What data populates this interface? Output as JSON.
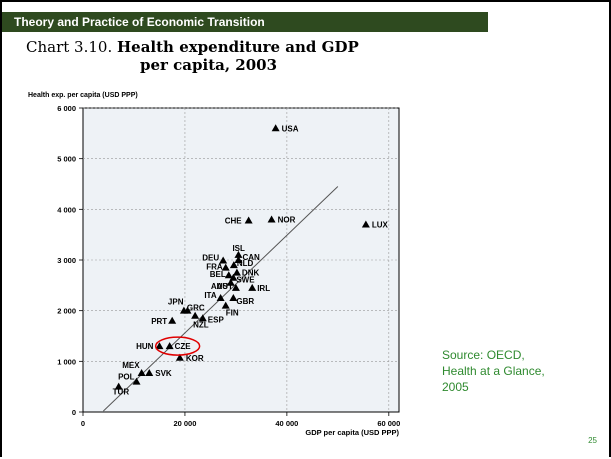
{
  "header": {
    "title": "Theory and Practice of Economic Transition"
  },
  "chart_title": {
    "line1_num": "Chart 3.10.",
    "line1_rest": "Health expenditure and GDP",
    "line2": "per capita, 2003"
  },
  "source": {
    "text": "Source: OECD, Health at a Glance, 2005"
  },
  "page_number": "25",
  "colors": {
    "header_bg": "#2e4a1f",
    "source_text": "#2f8a2f",
    "highlight_ellipse": "#e00000",
    "point": "#000000"
  },
  "chart_data": {
    "type": "scatter",
    "title": "Chart 3.10. Health expenditure and GDP per capita, 2003",
    "ylabel": "Health exp. per capita (USD PPP)",
    "xlabel": "GDP per capita (USD PPP)",
    "xlim": [
      0,
      62000
    ],
    "ylim": [
      0,
      6000
    ],
    "xticks": [
      0,
      20000,
      40000,
      60000
    ],
    "xtick_labels": [
      "0",
      "20 000",
      "40 000",
      "60 000"
    ],
    "yticks": [
      0,
      1000,
      2000,
      3000,
      4000,
      5000,
      6000
    ],
    "ytick_labels": [
      "0",
      "1 000",
      "2 000",
      "3 000",
      "4 000",
      "5 000",
      "6 000"
    ],
    "grid": true,
    "trendline": {
      "x": [
        4000,
        50000
      ],
      "y": [
        20,
        4450
      ]
    },
    "highlight": {
      "label": "CZE",
      "x": 17000,
      "y": 1300
    },
    "points": [
      {
        "label": "USA",
        "x": 37800,
        "y": 5600
      },
      {
        "label": "LUX",
        "x": 55500,
        "y": 3700
      },
      {
        "label": "CHE",
        "x": 32500,
        "y": 3780
      },
      {
        "label": "NOR",
        "x": 37000,
        "y": 3800
      },
      {
        "label": "ISL",
        "x": 30500,
        "y": 3100
      },
      {
        "label": "CAN",
        "x": 30500,
        "y": 3000
      },
      {
        "label": "DEU",
        "x": 27500,
        "y": 2990
      },
      {
        "label": "NLD",
        "x": 29600,
        "y": 2900
      },
      {
        "label": "FRA",
        "x": 28000,
        "y": 2850
      },
      {
        "label": "DNK",
        "x": 30200,
        "y": 2750
      },
      {
        "label": "BEL",
        "x": 28600,
        "y": 2700
      },
      {
        "label": "AUS",
        "x": 29000,
        "y": 2550
      },
      {
        "label": "SWE",
        "x": 29500,
        "y": 2650
      },
      {
        "label": "AUT",
        "x": 30000,
        "y": 2450
      },
      {
        "label": "IRL",
        "x": 33200,
        "y": 2450
      },
      {
        "label": "ITA",
        "x": 27000,
        "y": 2250
      },
      {
        "label": "GBR",
        "x": 29500,
        "y": 2250
      },
      {
        "label": "FIN",
        "x": 28000,
        "y": 2100
      },
      {
        "label": "JPN",
        "x": 20500,
        "y": 2000
      },
      {
        "label": "GRC",
        "x": 19800,
        "y": 2000
      },
      {
        "label": "NZL",
        "x": 22000,
        "y": 1900
      },
      {
        "label": "ESP",
        "x": 23500,
        "y": 1850
      },
      {
        "label": "PRT",
        "x": 17500,
        "y": 1800
      },
      {
        "label": "HUN",
        "x": 15000,
        "y": 1300
      },
      {
        "label": "CZE",
        "x": 17000,
        "y": 1300
      },
      {
        "label": "KOR",
        "x": 19000,
        "y": 1070
      },
      {
        "label": "MEX",
        "x": 11500,
        "y": 770
      },
      {
        "label": "SVK",
        "x": 13000,
        "y": 770
      },
      {
        "label": "POL",
        "x": 10500,
        "y": 600
      },
      {
        "label": "TUR",
        "x": 7000,
        "y": 500
      }
    ]
  }
}
